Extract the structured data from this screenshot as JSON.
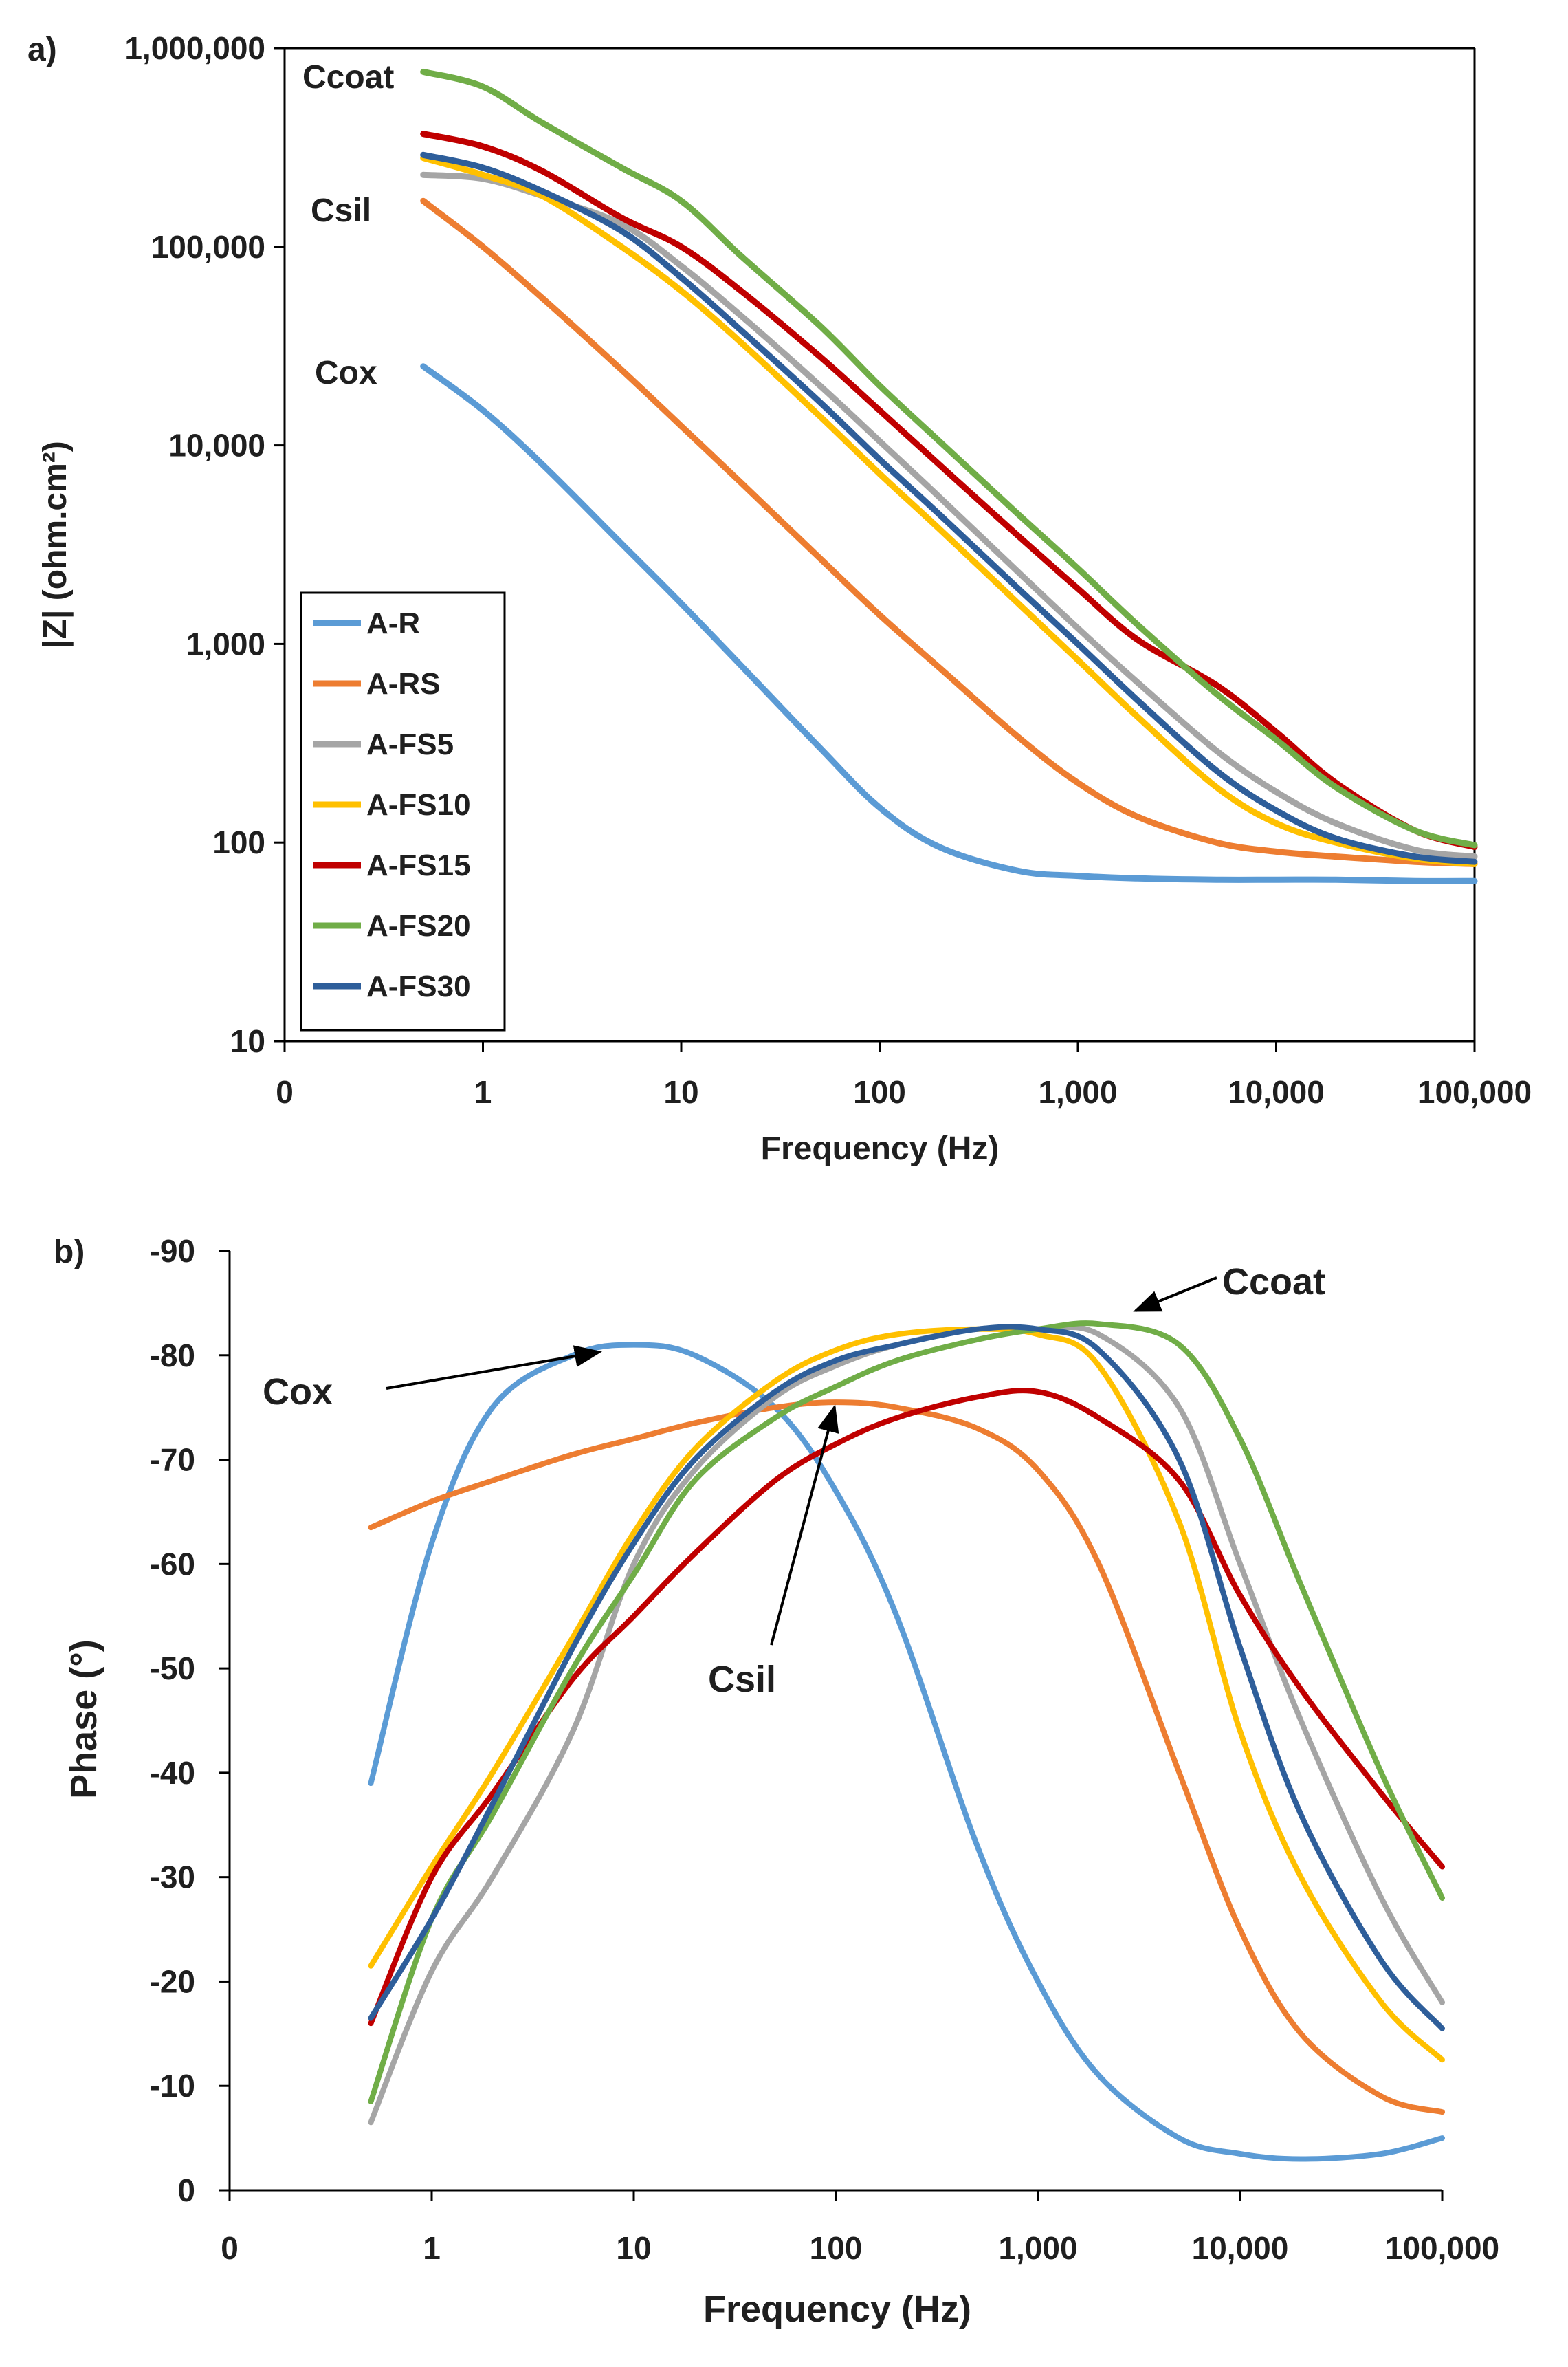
{
  "chart_data": [
    {
      "panel": "a)",
      "type": "line",
      "xscale": "log",
      "yscale": "log",
      "xlabel": "Frequency (Hz)",
      "ylabel": "|Z| (ohm.cm²)",
      "xlim": [
        0.1,
        100000
      ],
      "ylim": [
        10,
        1000000
      ],
      "x_ticks": [
        0.1,
        1,
        10,
        100,
        1000,
        10000,
        100000
      ],
      "x_tick_labels": [
        "0",
        "1",
        "10",
        "100",
        "1,000",
        "10,000",
        "100,000"
      ],
      "y_ticks": [
        10,
        100,
        1000,
        10000,
        100000,
        1000000
      ],
      "y_tick_labels": [
        "10",
        "100",
        "1,000",
        "10,000",
        "100,000",
        "1,000,000"
      ],
      "legend": {
        "placement": "lower-left"
      },
      "annotations": [
        "Ccoat",
        "Csil",
        "Cox"
      ],
      "x": [
        0.5,
        1,
        2,
        5,
        10,
        20,
        50,
        100,
        200,
        500,
        1000,
        2000,
        5000,
        10000,
        20000,
        50000,
        100000
      ],
      "series": [
        {
          "name": "A-R",
          "color": "#5b9bd5",
          "values": [
            25000,
            15000,
            8000,
            3200,
            1600,
            780,
            300,
            150,
            95,
            72,
            68,
            66,
            65,
            65,
            65,
            64,
            64
          ]
        },
        {
          "name": "A-RS",
          "color": "#ed7d31",
          "values": [
            170000,
            100000,
            55000,
            24000,
            12500,
            6500,
            2700,
            1400,
            760,
            340,
            200,
            135,
            100,
            90,
            85,
            80,
            78
          ]
        },
        {
          "name": "A-FS5",
          "color": "#a5a5a5",
          "values": [
            230000,
            220000,
            180000,
            130000,
            80000,
            45000,
            20000,
            10500,
            5500,
            2300,
            1200,
            640,
            290,
            180,
            125,
            92,
            85
          ]
        },
        {
          "name": "A-FS10",
          "color": "#ffc000",
          "values": [
            280000,
            230000,
            180000,
            100000,
            60000,
            33000,
            14000,
            7200,
            3800,
            1600,
            830,
            430,
            190,
            125,
            100,
            83,
            78
          ]
        },
        {
          "name": "A-FS15",
          "color": "#c00000",
          "values": [
            370000,
            320000,
            240000,
            140000,
            100000,
            60000,
            28000,
            15000,
            8000,
            3500,
            1900,
            1050,
            620,
            360,
            200,
            115,
            95
          ]
        },
        {
          "name": "A-FS20",
          "color": "#70ad47",
          "values": [
            760000,
            640000,
            420000,
            250000,
            170000,
            90000,
            40000,
            20000,
            10500,
            4500,
            2400,
            1250,
            560,
            330,
            190,
            115,
            97
          ]
        },
        {
          "name": "A-FS30",
          "color": "#2e5e9a",
          "values": [
            290000,
            250000,
            190000,
            120000,
            70000,
            38000,
            16500,
            8500,
            4500,
            1900,
            1000,
            520,
            230,
            145,
            105,
            85,
            80
          ]
        }
      ]
    },
    {
      "panel": "b)",
      "type": "line",
      "xscale": "log",
      "xlabel": "Frequency (Hz)",
      "ylabel": "Phase (°)",
      "xlim": [
        0.1,
        100000
      ],
      "ylim": [
        0,
        -90
      ],
      "x_ticks": [
        0.1,
        1,
        10,
        100,
        1000,
        10000,
        100000
      ],
      "x_tick_labels": [
        "0",
        "1",
        "10",
        "100",
        "1,000",
        "10,000",
        "100,000"
      ],
      "y_ticks": [
        0,
        -10,
        -20,
        -30,
        -40,
        -50,
        -60,
        -70,
        -80,
        -90
      ],
      "y_tick_labels": [
        "0",
        "-10",
        "-20",
        "-30",
        "-40",
        "-50",
        "-60",
        "-70",
        "-80",
        "-90"
      ],
      "annotations": [
        "Cox",
        "Csil",
        "Ccoat"
      ],
      "x": [
        0.5,
        1,
        2,
        5,
        10,
        20,
        50,
        100,
        200,
        500,
        1000,
        2000,
        5000,
        10000,
        20000,
        50000,
        100000
      ],
      "series": [
        {
          "name": "A-R",
          "color": "#5b9bd5",
          "values": [
            -39,
            -62,
            -75,
            -80,
            -81,
            -80,
            -75,
            -67,
            -55,
            -33,
            -20,
            -11,
            -5,
            -3.5,
            -3,
            -3.5,
            -5
          ]
        },
        {
          "name": "A-RS",
          "color": "#ed7d31",
          "values": [
            -63.5,
            -66,
            -68,
            -70.5,
            -72,
            -73.5,
            -75,
            -75.5,
            -75,
            -73,
            -69,
            -60,
            -40,
            -25,
            -15,
            -9,
            -7.5
          ]
        },
        {
          "name": "A-FS5",
          "color": "#a5a5a5",
          "values": [
            -6.5,
            -21,
            -30,
            -44,
            -60,
            -69,
            -76,
            -79,
            -81,
            -82.5,
            -82.5,
            -82,
            -75,
            -60,
            -45,
            -28,
            -18
          ]
        },
        {
          "name": "A-FS10",
          "color": "#ffc000",
          "values": [
            -21.5,
            -31,
            -40,
            -53,
            -63,
            -71,
            -77.5,
            -80.5,
            -82,
            -82.5,
            -82,
            -79,
            -64,
            -44,
            -30,
            -18,
            -12.5
          ]
        },
        {
          "name": "A-FS15",
          "color": "#c00000",
          "values": [
            -16,
            -30,
            -38,
            -49,
            -55,
            -61,
            -68,
            -71.5,
            -74,
            -76,
            -76.5,
            -74,
            -68,
            -57,
            -48,
            -38,
            -31
          ]
        },
        {
          "name": "A-FS20",
          "color": "#70ad47",
          "values": [
            -8.5,
            -26,
            -36,
            -50,
            -59,
            -68,
            -74,
            -77,
            -79.5,
            -81.5,
            -82.5,
            -83,
            -81,
            -72,
            -58,
            -40,
            -28
          ]
        },
        {
          "name": "A-FS30",
          "color": "#2e5e9a",
          "values": [
            -16.5,
            -26,
            -37,
            -52,
            -62,
            -70,
            -76.5,
            -79.5,
            -81,
            -82.5,
            -82.5,
            -80.5,
            -70,
            -52,
            -36,
            -22,
            -15.5
          ]
        }
      ]
    }
  ]
}
